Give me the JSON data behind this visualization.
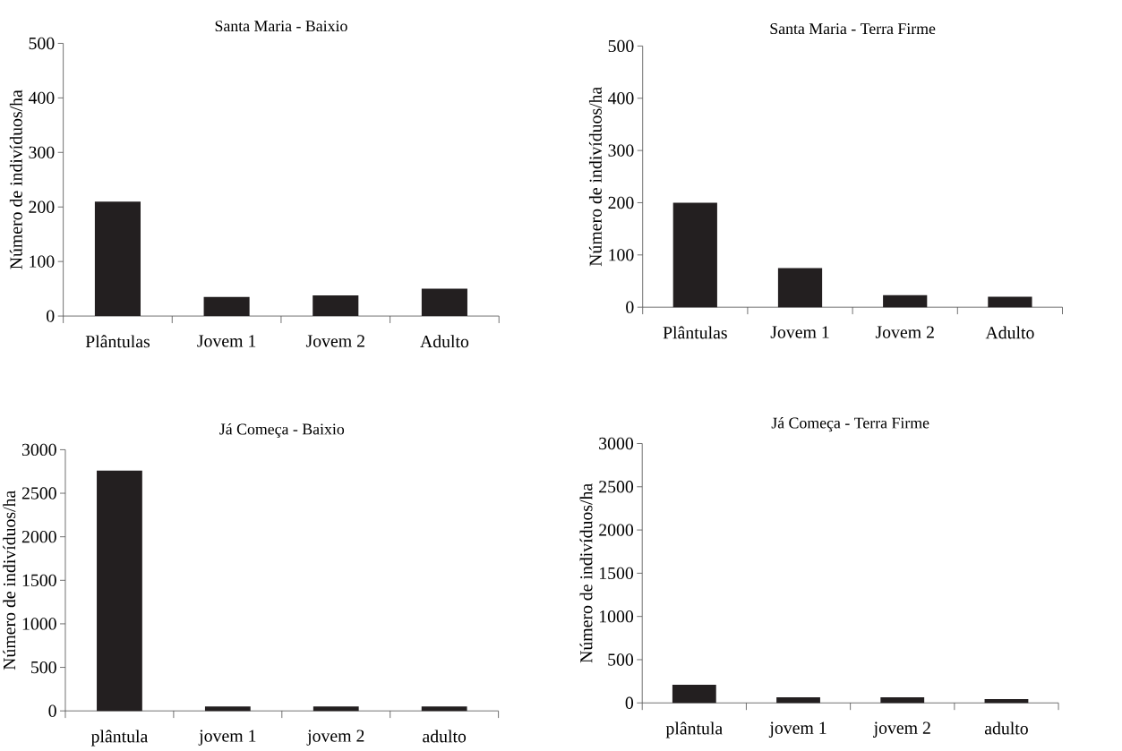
{
  "chart_data": [
    {
      "type": "bar",
      "title": "Santa Maria - Baixio",
      "ylabel": "Número de indivíduos/ha",
      "categories": [
        "Plântulas",
        "Jovem 1",
        "Jovem 2",
        "Adulto"
      ],
      "values": [
        210,
        35,
        38,
        50
      ],
      "color": "#231f20",
      "ylim": [
        0,
        500
      ],
      "yticks": [
        0,
        100,
        200,
        300,
        400,
        500
      ]
    },
    {
      "type": "bar",
      "title": "Santa Maria - Terra Firme",
      "ylabel": "Número de indivíduos/ha",
      "categories": [
        "Plântulas",
        "Jovem 1",
        "Jovem 2",
        "Adulto"
      ],
      "values": [
        200,
        75,
        23,
        20
      ],
      "color": "#231f20",
      "ylim": [
        0,
        500
      ],
      "yticks": [
        0,
        100,
        200,
        300,
        400,
        500
      ]
    },
    {
      "type": "bar",
      "title": "Já Começa - Baixio",
      "ylabel": "Número de indivíduos/ha",
      "categories": [
        "plântula",
        "jovem 1",
        "jovem 2",
        "adulto"
      ],
      "values": [
        2760,
        50,
        50,
        50
      ],
      "color": "#231f20",
      "ylim": [
        0,
        3000
      ],
      "yticks": [
        0,
        500,
        1000,
        1500,
        2000,
        2500,
        3000
      ]
    },
    {
      "type": "bar",
      "title": "Já Começa - Terra Firme",
      "ylabel": "Número de indivíduos/ha",
      "categories": [
        "plântula",
        "jovem 1",
        "jovem 2",
        "adulto"
      ],
      "values": [
        210,
        66,
        66,
        45
      ],
      "color": "#231f20",
      "ylim": [
        0,
        3000
      ],
      "yticks": [
        0,
        500,
        1000,
        1500,
        2000,
        2500,
        3000
      ]
    }
  ]
}
